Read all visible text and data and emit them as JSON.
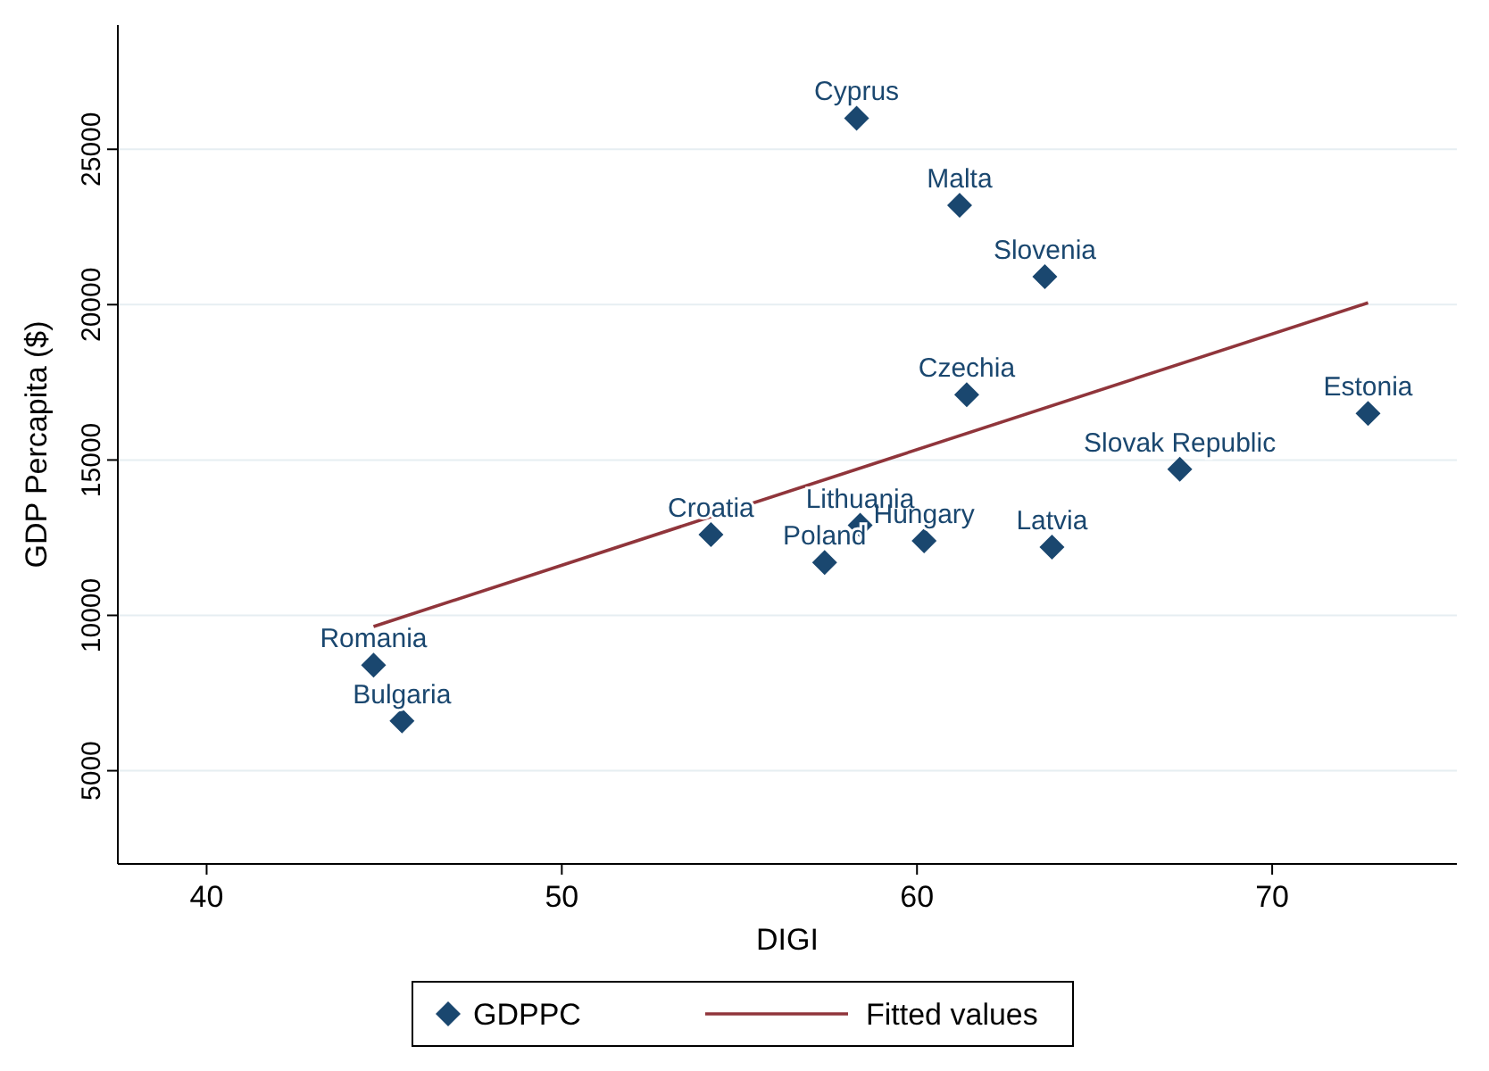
{
  "chart_data": {
    "type": "scatter",
    "xlabel": "DIGI",
    "ylabel": "GDP Percapita ($)",
    "xlim": [
      37.5,
      75.2
    ],
    "ylim": [
      2000,
      29000
    ],
    "xticks": [
      40,
      50,
      60,
      70
    ],
    "yticks": [
      5000,
      10000,
      15000,
      20000,
      25000
    ],
    "grid": "y",
    "legend": "bottom",
    "series": [
      {
        "name": "GDPPC",
        "color": "#1a476f",
        "marker": "diamond",
        "x": [
          58.3,
          61.2,
          63.6,
          61.4,
          72.7,
          67.4,
          54.2,
          58.4,
          60.2,
          57.4,
          63.8,
          44.7,
          45.5
        ],
        "values": [
          26000,
          23200,
          20900,
          17100,
          16500,
          14700,
          12600,
          12900,
          12400,
          11700,
          12200,
          8400,
          6600
        ]
      },
      {
        "name": "Fitted values",
        "type": "line",
        "color": "#90353b",
        "marker": "none",
        "line_style": "solid",
        "x": [
          44.7,
          72.7
        ],
        "values": [
          9640,
          20060
        ]
      }
    ],
    "annotations": [
      {
        "text": "Cyprus",
        "x": 58.3,
        "y": 26000
      },
      {
        "text": "Malta",
        "x": 61.2,
        "y": 23200
      },
      {
        "text": "Slovenia",
        "x": 63.6,
        "y": 20900
      },
      {
        "text": "Czechia",
        "x": 61.4,
        "y": 17100
      },
      {
        "text": "Estonia",
        "x": 72.7,
        "y": 16500
      },
      {
        "text": "Slovak Republic",
        "x": 67.4,
        "y": 14700
      },
      {
        "text": "Croatia",
        "x": 54.2,
        "y": 12600
      },
      {
        "text": "Lithuania",
        "x": 58.4,
        "y": 12900
      },
      {
        "text": "Hungary",
        "x": 60.2,
        "y": 12400
      },
      {
        "text": "Poland",
        "x": 57.4,
        "y": 11700
      },
      {
        "text": "Latvia",
        "x": 63.8,
        "y": 12200
      },
      {
        "text": "Romania",
        "x": 44.7,
        "y": 8400
      },
      {
        "text": "Bulgaria",
        "x": 45.5,
        "y": 6600
      }
    ]
  }
}
